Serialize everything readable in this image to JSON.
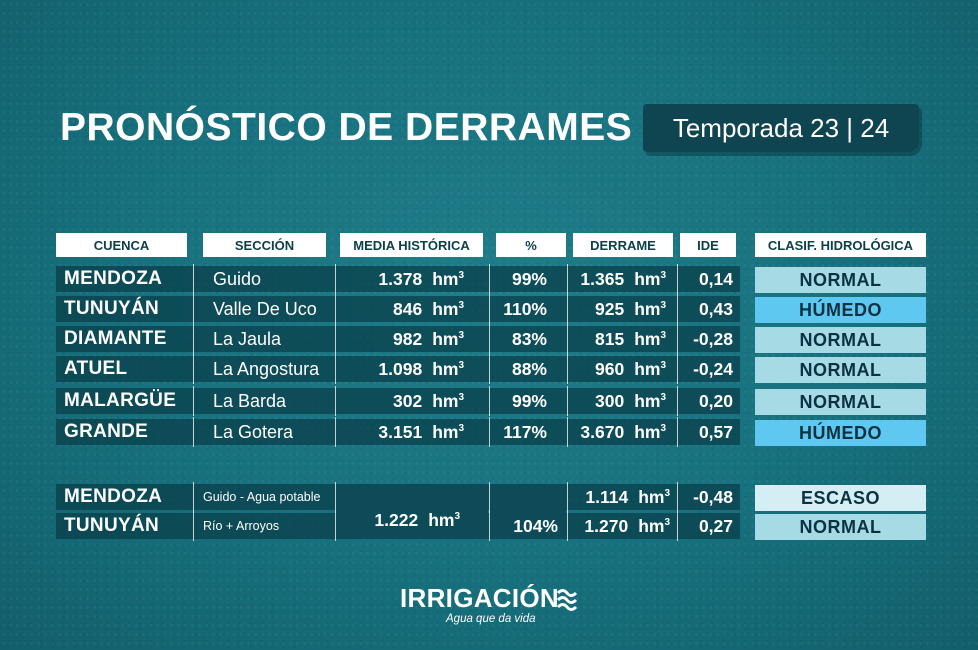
{
  "title": "PRONÓSTICO DE DERRAMES",
  "season": "Temporada 23 | 24",
  "colors": {
    "background": "#17707d",
    "row": "#0c4a55",
    "normal": "#a6dbe6",
    "humedo": "#5fc8f0",
    "escaso": "#d4eef4"
  },
  "headers": {
    "cuenca": "CUENCA",
    "seccion": "SECCIÓN",
    "media": "MEDIA HISTÓRICA",
    "pct": "%",
    "derrame": "DERRAME",
    "ide": "IDE",
    "clasif": "CLASIF. HIDROLÓGICA"
  },
  "unit": "hm",
  "unit_sup": "3",
  "rows": [
    {
      "cuenca": "MENDOZA",
      "seccion": "Guido",
      "media": "1.378",
      "pct": "99%",
      "derrame": "1.365",
      "ide": "0,14",
      "clasif": "NORMAL",
      "clasif_color": "#a6dbe6"
    },
    {
      "cuenca": "TUNUYÁN",
      "seccion": "Valle De Uco",
      "media": "846",
      "pct": "110%",
      "derrame": "925",
      "ide": "0,43",
      "clasif": "HÚMEDO",
      "clasif_color": "#5fc8f0"
    },
    {
      "cuenca": "DIAMANTE",
      "seccion": "La Jaula",
      "media": "982",
      "pct": "83%",
      "derrame": "815",
      "ide": "-0,28",
      "clasif": "NORMAL",
      "clasif_color": "#a6dbe6"
    },
    {
      "cuenca": "ATUEL",
      "seccion": "La Angostura",
      "media": "1.098",
      "pct": "88%",
      "derrame": "960",
      "ide": "-0,24",
      "clasif": "NORMAL",
      "clasif_color": "#a6dbe6"
    },
    {
      "cuenca": "MALARGÜE",
      "seccion": "La Barda",
      "media": "302",
      "pct": "99%",
      "derrame": "300",
      "ide": "0,20",
      "clasif": "NORMAL",
      "clasif_color": "#a6dbe6"
    },
    {
      "cuenca": "GRANDE",
      "seccion": "La Gotera",
      "media": "3.151",
      "pct": "117%",
      "derrame": "3.670",
      "ide": "0,57",
      "clasif": "HÚMEDO",
      "clasif_color": "#5fc8f0"
    }
  ],
  "extra": {
    "row1": {
      "cuenca": "MENDOZA",
      "seccion": "Guido - Agua potable",
      "derrame": "1.114",
      "ide": "-0,48",
      "clasif": "ESCASO",
      "clasif_color": "#d4eef4"
    },
    "row2": {
      "cuenca": "TUNUYÁN",
      "seccion": "Río + Arroyos",
      "derrame": "1.270",
      "ide": "0,27",
      "clasif": "NORMAL",
      "clasif_color": "#a6dbe6"
    },
    "media": "1.222",
    "pct": "104%"
  },
  "logo": {
    "word": "IRRIGACIÓN",
    "tagline": "Agua que da vida"
  }
}
